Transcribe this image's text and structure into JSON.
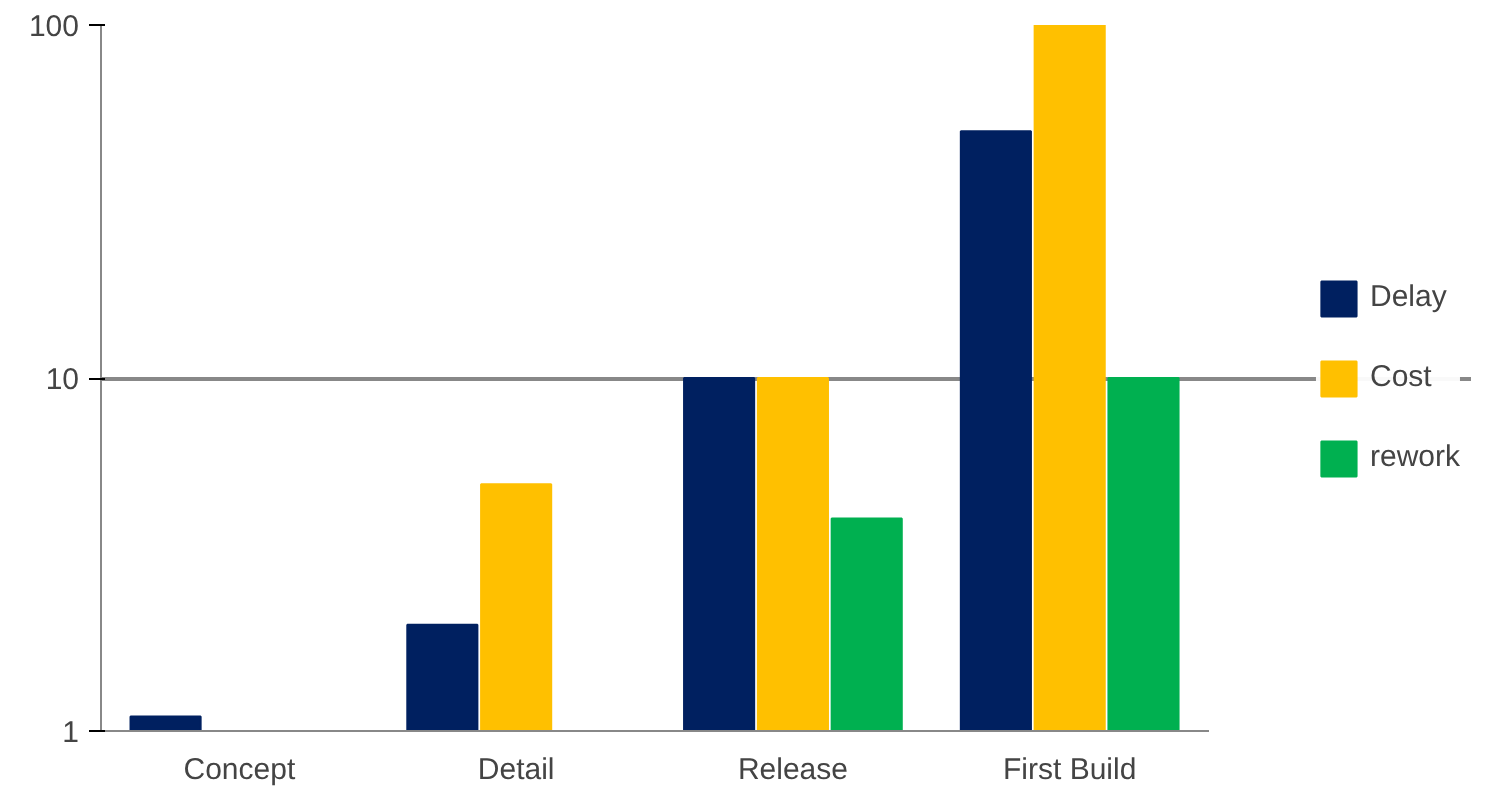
{
  "chart_data": {
    "type": "bar",
    "categories": [
      "Concept",
      "Detail",
      "Release",
      "First Build"
    ],
    "series": [
      {
        "name": "Delay",
        "color": "#002060",
        "values": [
          1.1,
          2,
          10,
          50
        ]
      },
      {
        "name": "Cost",
        "color": "#ffc000",
        "values": [
          null,
          5,
          10,
          100
        ]
      },
      {
        "name": "rework",
        "color": "#00b050",
        "values": [
          null,
          null,
          4,
          10
        ]
      }
    ],
    "log": true,
    "ylim": [
      1,
      100
    ],
    "yticks": [
      1,
      10,
      100
    ],
    "grid": "y",
    "legend": "right"
  }
}
